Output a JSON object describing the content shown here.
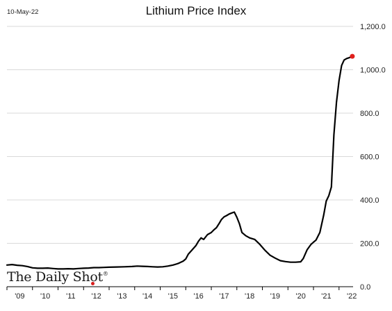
{
  "header": {
    "date": "10-May-22",
    "title": "Lithium Price Index"
  },
  "brand": {
    "name": "The Daily Shot",
    "mark": "®"
  },
  "colors": {
    "line": "#000000",
    "endpoint": "#e0201c",
    "grid": "#d9d9d9",
    "brand_dot": "#d81e1e"
  },
  "chart_data": {
    "type": "line",
    "title": "Lithium Price Index",
    "xlabel": "",
    "ylabel": "",
    "xlim": [
      2009.0,
      2022.55
    ],
    "ylim": [
      0,
      1200
    ],
    "grid": true,
    "y_axis_position": "right",
    "x_tick_labels": [
      "'09",
      "'10",
      "'11",
      "'12",
      "'13",
      "'14",
      "'15",
      "'16",
      "'17",
      "'18",
      "'19",
      "'20",
      "'21",
      "'22"
    ],
    "y_tick_labels": [
      "0.0",
      "200.0",
      "400.0",
      "600.0",
      "800.0",
      "1,000.0",
      "1,200.0"
    ],
    "y_ticks": [
      0,
      200,
      400,
      600,
      800,
      1000,
      1200
    ],
    "series": [
      {
        "x": [
          2009.0,
          2009.2,
          2009.4,
          2009.6,
          2009.8,
          2010.0,
          2010.2,
          2010.4,
          2010.6,
          2010.8,
          2011.0,
          2011.2,
          2011.4,
          2011.6,
          2011.8,
          2012.0,
          2012.2,
          2012.4,
          2012.6,
          2012.8,
          2013.0,
          2013.3,
          2013.6,
          2013.9,
          2014.1,
          2014.3,
          2014.5,
          2014.7,
          2014.9,
          2015.1,
          2015.3,
          2015.5,
          2015.7,
          2015.9,
          2016.0,
          2016.1,
          2016.25,
          2016.4,
          2016.5,
          2016.6,
          2016.7,
          2016.85,
          2017.0,
          2017.1,
          2017.2,
          2017.3,
          2017.4,
          2017.5,
          2017.6,
          2017.7,
          2017.8,
          2017.9,
          2018.0,
          2018.1,
          2018.2,
          2018.35,
          2018.5,
          2018.7,
          2018.9,
          2019.1,
          2019.3,
          2019.5,
          2019.7,
          2019.9,
          2020.1,
          2020.3,
          2020.5,
          2020.6,
          2020.75,
          2020.9,
          2021.0,
          2021.1,
          2021.25,
          2021.4,
          2021.5,
          2021.6,
          2021.7,
          2021.8,
          2021.9,
          2022.0,
          2022.1,
          2022.2,
          2022.3,
          2022.38,
          2022.45,
          2022.52
        ],
        "values": [
          100,
          102,
          99,
          97,
          93,
          87,
          85,
          85,
          86,
          84,
          82,
          82,
          83,
          82,
          84,
          85,
          86,
          88,
          88,
          89,
          90,
          91,
          92,
          93,
          95,
          94,
          93,
          92,
          91,
          92,
          95,
          100,
          107,
          118,
          128,
          150,
          170,
          190,
          210,
          225,
          218,
          240,
          250,
          262,
          272,
          290,
          310,
          322,
          328,
          335,
          340,
          344,
          320,
          290,
          250,
          235,
          225,
          218,
          195,
          168,
          145,
          132,
          120,
          116,
          113,
          113,
          115,
          130,
          170,
          195,
          205,
          215,
          250,
          330,
          395,
          420,
          460,
          700,
          850,
          950,
          1020,
          1045,
          1052,
          1055,
          1058,
          1062
        ]
      }
    ],
    "annotations": [
      {
        "type": "endpoint-marker",
        "x": 2022.52,
        "y": 1062
      }
    ]
  }
}
